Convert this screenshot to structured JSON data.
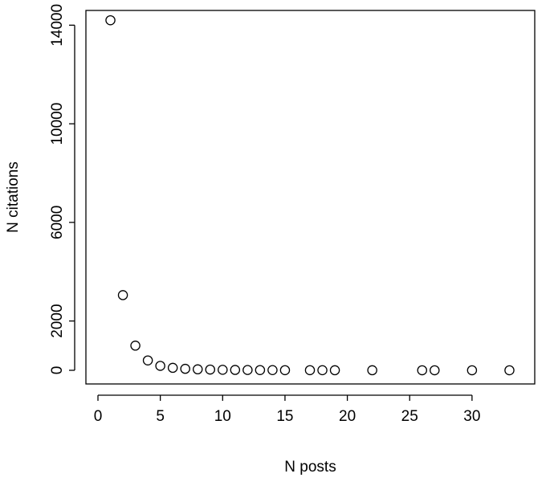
{
  "chart_data": {
    "type": "scatter",
    "title": "",
    "xlabel": "N posts",
    "ylabel": "N citations",
    "xlim": [
      0,
      34
    ],
    "ylim": [
      0,
      14500
    ],
    "x_ticks": [
      0,
      5,
      10,
      15,
      20,
      25,
      30
    ],
    "y_ticks": [
      0,
      2000,
      6000,
      10000,
      14000
    ],
    "grid": false,
    "legend": "none",
    "marker": "open-circle",
    "series": [
      {
        "points": [
          {
            "x": 1,
            "y": 14200
          },
          {
            "x": 2,
            "y": 3050
          },
          {
            "x": 3,
            "y": 1000
          },
          {
            "x": 4,
            "y": 400
          },
          {
            "x": 5,
            "y": 180
          },
          {
            "x": 6,
            "y": 100
          },
          {
            "x": 7,
            "y": 60
          },
          {
            "x": 8,
            "y": 40
          },
          {
            "x": 9,
            "y": 30
          },
          {
            "x": 10,
            "y": 20
          },
          {
            "x": 11,
            "y": 15
          },
          {
            "x": 12,
            "y": 12
          },
          {
            "x": 13,
            "y": 10
          },
          {
            "x": 14,
            "y": 8
          },
          {
            "x": 15,
            "y": 6
          },
          {
            "x": 17,
            "y": 5
          },
          {
            "x": 18,
            "y": 4
          },
          {
            "x": 19,
            "y": 3
          },
          {
            "x": 22,
            "y": 3
          },
          {
            "x": 26,
            "y": 2
          },
          {
            "x": 27,
            "y": 2
          },
          {
            "x": 30,
            "y": 1
          },
          {
            "x": 33,
            "y": 1
          }
        ]
      }
    ]
  },
  "colors": {
    "axis": "#000000",
    "marker_stroke": "#000000",
    "marker_fill": "#ffffff",
    "background": "#ffffff"
  }
}
